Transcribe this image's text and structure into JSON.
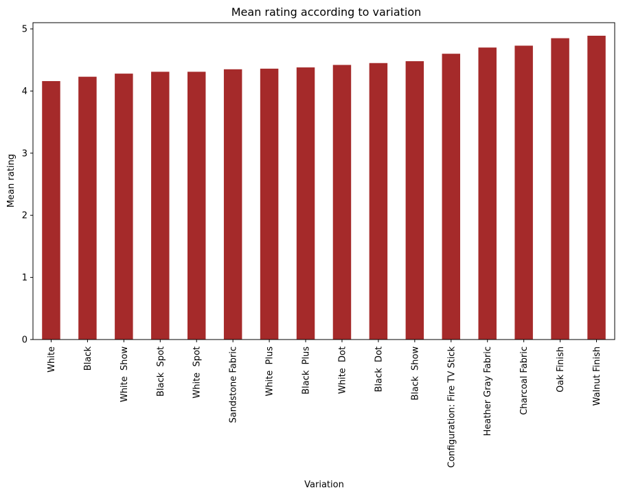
{
  "chart_data": {
    "type": "bar",
    "title": "Mean rating according to variation",
    "xlabel": "Variation",
    "ylabel": "Mean rating",
    "ylim": [
      0,
      5.1
    ],
    "yticks": [
      0,
      1,
      2,
      3,
      4,
      5
    ],
    "grid": false,
    "bar_color": "#a52a2a",
    "categories": [
      "White",
      "Black",
      "White  Show",
      "Black  Spot",
      "White  Spot",
      "Sandstone Fabric",
      "White  Plus",
      "Black  Plus",
      "White  Dot",
      "Black  Dot",
      "Black  Show",
      "Configuration: Fire TV Stick",
      "Heather Gray Fabric",
      "Charcoal Fabric",
      "Oak Finish",
      "Walnut Finish"
    ],
    "values": [
      4.16,
      4.23,
      4.28,
      4.31,
      4.31,
      4.35,
      4.36,
      4.38,
      4.42,
      4.45,
      4.48,
      4.6,
      4.7,
      4.73,
      4.85,
      4.89
    ]
  }
}
